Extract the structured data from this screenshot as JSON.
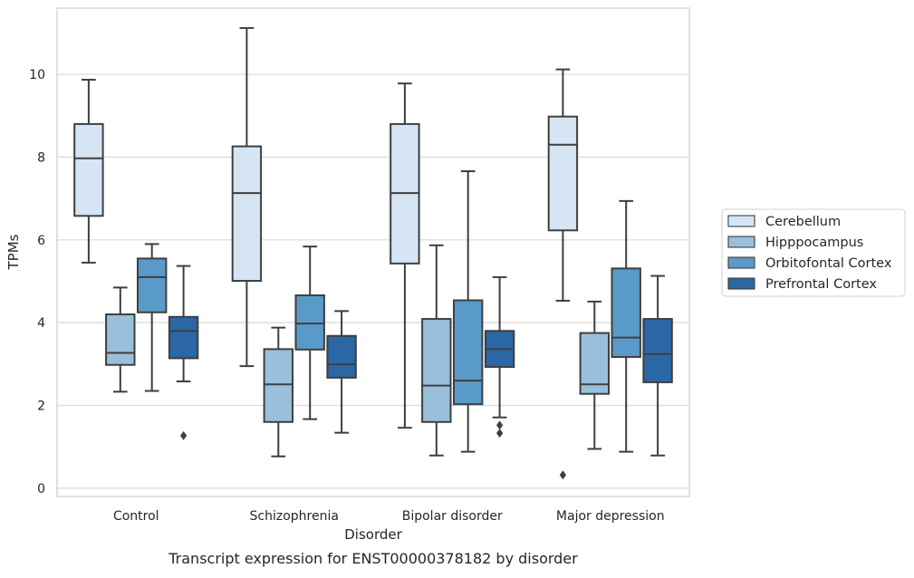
{
  "caption": "Transcript expression for ENST00000378182 by disorder",
  "colors": {
    "series": [
      "#d6e5f3",
      "#99c0da",
      "#5a9ac9",
      "#2b67a4"
    ],
    "box_edge": "#3f3f3f",
    "grid": "#d9d9d9",
    "frame": "#cfcfcf",
    "background": "#ffffff"
  },
  "chart_data": {
    "type": "box",
    "title": "",
    "xlabel": "Disorder",
    "ylabel": "TPMs",
    "ylim": [
      -0.2,
      11.6
    ],
    "yticks": [
      0,
      2,
      4,
      6,
      8,
      10
    ],
    "grid": "horizontal",
    "legend_position": "outside-right",
    "categories": [
      "Control",
      "Schizophrenia",
      "Bipolar disorder",
      "Major depression"
    ],
    "series": [
      {
        "name": "Cerebellum",
        "boxes": [
          {
            "whisker_low": 5.45,
            "q1": 6.58,
            "median": 7.97,
            "q3": 8.8,
            "whisker_high": 9.87,
            "outliers": []
          },
          {
            "whisker_low": 2.95,
            "q1": 5.01,
            "median": 7.13,
            "q3": 8.26,
            "whisker_high": 11.12,
            "outliers": []
          },
          {
            "whisker_low": 1.46,
            "q1": 5.43,
            "median": 7.13,
            "q3": 8.8,
            "whisker_high": 9.78,
            "outliers": []
          },
          {
            "whisker_low": 4.53,
            "q1": 6.23,
            "median": 8.3,
            "q3": 8.98,
            "whisker_high": 10.12,
            "outliers": [
              0.32
            ]
          }
        ]
      },
      {
        "name": "Hipppocampus",
        "boxes": [
          {
            "whisker_low": 2.33,
            "q1": 2.98,
            "median": 3.27,
            "q3": 4.2,
            "whisker_high": 4.85,
            "outliers": []
          },
          {
            "whisker_low": 0.77,
            "q1": 1.6,
            "median": 2.51,
            "q3": 3.36,
            "whisker_high": 3.88,
            "outliers": []
          },
          {
            "whisker_low": 0.79,
            "q1": 1.6,
            "median": 2.48,
            "q3": 4.09,
            "whisker_high": 5.87,
            "outliers": []
          },
          {
            "whisker_low": 0.95,
            "q1": 2.28,
            "median": 2.51,
            "q3": 3.75,
            "whisker_high": 4.51,
            "outliers": []
          }
        ]
      },
      {
        "name": "Orbitofontal Cortex",
        "boxes": [
          {
            "whisker_low": 2.35,
            "q1": 4.25,
            "median": 5.1,
            "q3": 5.55,
            "whisker_high": 5.9,
            "outliers": []
          },
          {
            "whisker_low": 1.67,
            "q1": 3.35,
            "median": 3.98,
            "q3": 4.66,
            "whisker_high": 5.84,
            "outliers": []
          },
          {
            "whisker_low": 0.88,
            "q1": 2.03,
            "median": 2.6,
            "q3": 4.54,
            "whisker_high": 7.66,
            "outliers": []
          },
          {
            "whisker_low": 0.88,
            "q1": 3.17,
            "median": 3.64,
            "q3": 5.31,
            "whisker_high": 6.94,
            "outliers": []
          }
        ]
      },
      {
        "name": "Prefrontal Cortex",
        "boxes": [
          {
            "whisker_low": 2.58,
            "q1": 3.14,
            "median": 3.8,
            "q3": 4.14,
            "whisker_high": 5.37,
            "outliers": [
              1.27
            ]
          },
          {
            "whisker_low": 1.34,
            "q1": 2.67,
            "median": 2.99,
            "q3": 3.68,
            "whisker_high": 4.28,
            "outliers": []
          },
          {
            "whisker_low": 1.71,
            "q1": 2.93,
            "median": 3.36,
            "q3": 3.8,
            "whisker_high": 5.1,
            "outliers": [
              1.33,
              1.52
            ]
          },
          {
            "whisker_low": 0.79,
            "q1": 2.56,
            "median": 3.24,
            "q3": 4.09,
            "whisker_high": 5.13,
            "outliers": []
          }
        ]
      }
    ]
  }
}
